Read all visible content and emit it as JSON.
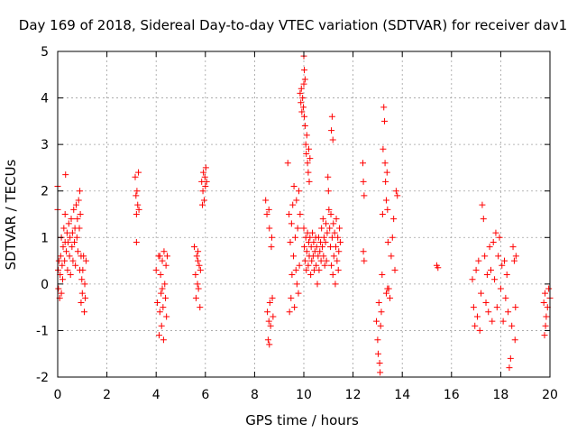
{
  "chart_data": {
    "type": "scatter",
    "title": "Day 169 of 2018, Sidereal Day-to-day VTEC variation (SDTVAR) for receiver dav1",
    "xlabel": "GPS time / hours",
    "ylabel": "SDTVAR / TECUs",
    "xlim": [
      0,
      20
    ],
    "ylim": [
      -2,
      5
    ],
    "xticks": [
      0,
      2,
      4,
      6,
      8,
      10,
      12,
      14,
      16,
      18,
      20
    ],
    "yticks": [
      -2,
      -1,
      0,
      1,
      2,
      3,
      4,
      5
    ],
    "grid": true,
    "marker": "plus",
    "color": "#ff0000",
    "series": [
      {
        "name": "dav1",
        "points": [
          [
            0.0,
            2.1
          ],
          [
            0.0,
            1.6
          ],
          [
            0.02,
            0.3
          ],
          [
            0.03,
            -0.1
          ],
          [
            0.05,
            0.5
          ],
          [
            0.08,
            -0.3
          ],
          [
            0.1,
            0.2
          ],
          [
            0.12,
            0.6
          ],
          [
            0.15,
            -0.2
          ],
          [
            0.15,
            1.0
          ],
          [
            0.18,
            0.4
          ],
          [
            0.2,
            0.1
          ],
          [
            0.22,
            0.8
          ],
          [
            0.25,
            1.2
          ],
          [
            0.28,
            0.5
          ],
          [
            0.3,
            0.9
          ],
          [
            0.3,
            1.5
          ],
          [
            0.32,
            2.35
          ],
          [
            0.35,
            0.7
          ],
          [
            0.38,
            1.1
          ],
          [
            0.4,
            0.3
          ],
          [
            0.42,
            0.9
          ],
          [
            0.45,
            1.3
          ],
          [
            0.48,
            0.6
          ],
          [
            0.5,
            1.0
          ],
          [
            0.52,
            0.2
          ],
          [
            0.55,
            1.4
          ],
          [
            0.58,
            0.8
          ],
          [
            0.6,
            1.1
          ],
          [
            0.62,
            0.5
          ],
          [
            0.65,
            1.6
          ],
          [
            0.68,
            0.9
          ],
          [
            0.7,
            1.2
          ],
          [
            0.72,
            0.4
          ],
          [
            0.75,
            1.7
          ],
          [
            0.78,
            1.0
          ],
          [
            0.8,
            1.4
          ],
          [
            0.82,
            0.7
          ],
          [
            0.85,
            1.8
          ],
          [
            0.88,
            1.2
          ],
          [
            0.9,
            2.0
          ],
          [
            0.9,
            0.3
          ],
          [
            0.92,
            1.5
          ],
          [
            0.95,
            0.6
          ],
          [
            0.95,
            -0.4
          ],
          [
            0.98,
            0.1
          ],
          [
            1.0,
            -0.2
          ],
          [
            1.02,
            0.3
          ],
          [
            1.05,
            0.6
          ],
          [
            1.08,
            -0.6
          ],
          [
            1.1,
            0.0
          ],
          [
            1.12,
            -0.3
          ],
          [
            1.15,
            0.5
          ],
          [
            3.15,
            2.3
          ],
          [
            3.18,
            1.9
          ],
          [
            3.2,
            1.5
          ],
          [
            3.22,
            2.0
          ],
          [
            3.25,
            1.7
          ],
          [
            3.28,
            2.4
          ],
          [
            3.3,
            1.6
          ],
          [
            3.2,
            0.9
          ],
          [
            4.0,
            0.3
          ],
          [
            4.05,
            -0.4
          ],
          [
            4.1,
            0.6
          ],
          [
            4.12,
            -1.1
          ],
          [
            4.15,
            -0.6
          ],
          [
            4.18,
            0.2
          ],
          [
            4.2,
            -0.2
          ],
          [
            4.22,
            -0.9
          ],
          [
            4.25,
            0.5
          ],
          [
            4.28,
            -0.5
          ],
          [
            4.3,
            -1.2
          ],
          [
            4.32,
            0.7
          ],
          [
            4.35,
            0.0
          ],
          [
            4.38,
            -0.3
          ],
          [
            4.4,
            0.4
          ],
          [
            4.42,
            -0.7
          ],
          [
            4.45,
            0.6
          ],
          [
            4.25,
            -0.1
          ],
          [
            4.15,
            0.6
          ],
          [
            5.55,
            0.8
          ],
          [
            5.6,
            0.2
          ],
          [
            5.62,
            -0.3
          ],
          [
            5.65,
            0.6
          ],
          [
            5.68,
            0.0
          ],
          [
            5.7,
            0.5
          ],
          [
            5.72,
            -0.1
          ],
          [
            5.75,
            0.4
          ],
          [
            5.78,
            -0.5
          ],
          [
            5.8,
            0.3
          ],
          [
            5.85,
            2.2
          ],
          [
            5.88,
            1.7
          ],
          [
            5.9,
            2.0
          ],
          [
            5.92,
            2.4
          ],
          [
            5.95,
            1.8
          ],
          [
            5.98,
            2.3
          ],
          [
            6.0,
            2.1
          ],
          [
            6.02,
            2.5
          ],
          [
            6.05,
            2.2
          ],
          [
            5.7,
            0.7
          ],
          [
            8.45,
            1.8
          ],
          [
            8.5,
            1.5
          ],
          [
            8.52,
            -0.6
          ],
          [
            8.55,
            -1.2
          ],
          [
            8.58,
            -0.8
          ],
          [
            8.6,
            -1.3
          ],
          [
            8.62,
            -0.4
          ],
          [
            8.65,
            -0.9
          ],
          [
            8.68,
            0.8
          ],
          [
            8.7,
            1.0
          ],
          [
            8.72,
            -0.3
          ],
          [
            8.75,
            -0.7
          ],
          [
            8.58,
            1.6
          ],
          [
            8.6,
            1.2
          ],
          [
            9.35,
            2.6
          ],
          [
            9.4,
            1.5
          ],
          [
            9.42,
            -0.6
          ],
          [
            9.45,
            0.9
          ],
          [
            9.48,
            -0.3
          ],
          [
            9.5,
            1.3
          ],
          [
            9.52,
            0.2
          ],
          [
            9.55,
            1.7
          ],
          [
            9.58,
            0.6
          ],
          [
            9.6,
            2.1
          ],
          [
            9.62,
            -0.5
          ],
          [
            9.65,
            1.0
          ],
          [
            9.68,
            0.3
          ],
          [
            9.7,
            1.8
          ],
          [
            9.72,
            0.0
          ],
          [
            9.75,
            1.2
          ],
          [
            9.78,
            -0.2
          ],
          [
            9.8,
            2.0
          ],
          [
            9.82,
            0.4
          ],
          [
            9.85,
            1.5
          ],
          [
            9.85,
            4.1
          ],
          [
            9.88,
            3.9
          ],
          [
            9.9,
            4.2
          ],
          [
            9.92,
            3.7
          ],
          [
            9.95,
            4.0
          ],
          [
            9.98,
            3.8
          ],
          [
            10.0,
            4.3
          ],
          [
            10.02,
            3.6
          ],
          [
            10.0,
            4.9
          ],
          [
            10.02,
            4.6
          ],
          [
            10.05,
            4.4
          ],
          [
            10.05,
            3.4
          ],
          [
            10.08,
            3.0
          ],
          [
            10.1,
            2.8
          ],
          [
            10.12,
            3.2
          ],
          [
            10.15,
            2.6
          ],
          [
            10.18,
            2.4
          ],
          [
            10.2,
            2.9
          ],
          [
            10.22,
            2.2
          ],
          [
            10.25,
            2.7
          ],
          [
            10.0,
            1.2
          ],
          [
            10.02,
            0.8
          ],
          [
            10.05,
            0.5
          ],
          [
            10.08,
            1.0
          ],
          [
            10.1,
            0.3
          ],
          [
            10.12,
            0.7
          ],
          [
            10.15,
            1.1
          ],
          [
            10.18,
            0.4
          ],
          [
            10.2,
            0.9
          ],
          [
            10.22,
            0.6
          ],
          [
            10.25,
            1.0
          ],
          [
            10.28,
            0.2
          ],
          [
            10.3,
            0.8
          ],
          [
            10.32,
            0.5
          ],
          [
            10.35,
            1.1
          ],
          [
            10.38,
            0.6
          ],
          [
            10.4,
            0.9
          ],
          [
            10.42,
            0.3
          ],
          [
            10.45,
            0.7
          ],
          [
            10.48,
            1.0
          ],
          [
            10.5,
            0.4
          ],
          [
            10.52,
            0.8
          ],
          [
            10.55,
            0.0
          ],
          [
            10.58,
            0.6
          ],
          [
            10.6,
            1.0
          ],
          [
            10.62,
            0.3
          ],
          [
            10.65,
            0.7
          ],
          [
            10.68,
            0.9
          ],
          [
            10.7,
            0.5
          ],
          [
            10.72,
            1.2
          ],
          [
            10.75,
            0.8
          ],
          [
            10.78,
            1.4
          ],
          [
            10.8,
            0.6
          ],
          [
            10.82,
            1.0
          ],
          [
            10.85,
            0.4
          ],
          [
            10.88,
            0.9
          ],
          [
            10.9,
            1.3
          ],
          [
            10.92,
            0.5
          ],
          [
            10.95,
            1.1
          ],
          [
            10.98,
            2.3
          ],
          [
            11.0,
            2.0
          ],
          [
            11.02,
            1.6
          ],
          [
            11.05,
            1.2
          ],
          [
            11.08,
            0.8
          ],
          [
            11.1,
            1.5
          ],
          [
            11.12,
            0.4
          ],
          [
            11.15,
            1.0
          ],
          [
            11.18,
            0.2
          ],
          [
            11.2,
            1.3
          ],
          [
            11.22,
            0.6
          ],
          [
            11.25,
            1.1
          ],
          [
            11.28,
            0.0
          ],
          [
            11.3,
            0.8
          ],
          [
            11.32,
            1.4
          ],
          [
            11.35,
            0.5
          ],
          [
            11.38,
            1.0
          ],
          [
            11.4,
            0.3
          ],
          [
            11.42,
            0.7
          ],
          [
            11.45,
            1.2
          ],
          [
            11.48,
            0.9
          ],
          [
            11.15,
            3.6
          ],
          [
            11.12,
            3.3
          ],
          [
            11.18,
            3.1
          ],
          [
            12.4,
            2.6
          ],
          [
            12.42,
            2.2
          ],
          [
            12.45,
            1.9
          ],
          [
            12.42,
            0.7
          ],
          [
            12.45,
            0.5
          ],
          [
            12.95,
            -0.8
          ],
          [
            13.0,
            -1.2
          ],
          [
            13.02,
            -1.5
          ],
          [
            13.05,
            -0.4
          ],
          [
            13.08,
            -1.7
          ],
          [
            13.1,
            -1.9
          ],
          [
            13.12,
            -0.9
          ],
          [
            13.15,
            -0.6
          ],
          [
            13.18,
            0.2
          ],
          [
            13.2,
            1.5
          ],
          [
            13.22,
            2.9
          ],
          [
            13.25,
            3.8
          ],
          [
            13.28,
            3.5
          ],
          [
            13.3,
            2.6
          ],
          [
            13.32,
            2.2
          ],
          [
            13.35,
            1.8
          ],
          [
            13.38,
            2.4
          ],
          [
            13.4,
            1.6
          ],
          [
            13.42,
            0.9
          ],
          [
            13.45,
            -0.1
          ],
          [
            13.5,
            -0.3
          ],
          [
            13.55,
            0.6
          ],
          [
            13.6,
            1.0
          ],
          [
            13.65,
            1.4
          ],
          [
            13.7,
            0.3
          ],
          [
            13.75,
            2.0
          ],
          [
            13.8,
            1.9
          ],
          [
            13.35,
            -0.2
          ],
          [
            13.4,
            -0.1
          ],
          [
            15.4,
            0.4
          ],
          [
            15.45,
            0.35
          ],
          [
            16.85,
            0.1
          ],
          [
            16.9,
            -0.5
          ],
          [
            16.95,
            -0.9
          ],
          [
            17.0,
            0.3
          ],
          [
            17.05,
            -0.7
          ],
          [
            17.1,
            0.5
          ],
          [
            17.15,
            -1.0
          ],
          [
            17.2,
            -0.2
          ],
          [
            17.25,
            1.7
          ],
          [
            17.3,
            1.4
          ],
          [
            17.35,
            0.6
          ],
          [
            17.4,
            -0.4
          ],
          [
            17.45,
            0.2
          ],
          [
            17.5,
            -0.6
          ],
          [
            17.55,
            0.8
          ],
          [
            17.6,
            0.3
          ],
          [
            17.65,
            -0.8
          ],
          [
            17.7,
            0.9
          ],
          [
            17.75,
            0.1
          ],
          [
            17.8,
            1.1
          ],
          [
            17.85,
            -0.5
          ],
          [
            17.9,
            0.6
          ],
          [
            17.95,
            1.0
          ],
          [
            18.0,
            -0.1
          ],
          [
            18.05,
            0.4
          ],
          [
            18.1,
            -0.8
          ],
          [
            18.15,
            0.5
          ],
          [
            18.2,
            -0.3
          ],
          [
            18.25,
            0.2
          ],
          [
            18.3,
            -0.6
          ],
          [
            18.35,
            -1.8
          ],
          [
            18.4,
            -1.6
          ],
          [
            18.45,
            -0.9
          ],
          [
            18.5,
            0.8
          ],
          [
            18.55,
            0.5
          ],
          [
            18.6,
            -0.5
          ],
          [
            18.62,
            0.6
          ],
          [
            18.58,
            -1.2
          ],
          [
            19.75,
            -0.4
          ],
          [
            19.78,
            -1.1
          ],
          [
            19.8,
            -0.2
          ],
          [
            19.85,
            -0.7
          ],
          [
            19.9,
            -0.5
          ],
          [
            19.95,
            -0.1
          ],
          [
            20.0,
            -0.3
          ],
          [
            19.82,
            -0.9
          ]
        ]
      }
    ]
  }
}
